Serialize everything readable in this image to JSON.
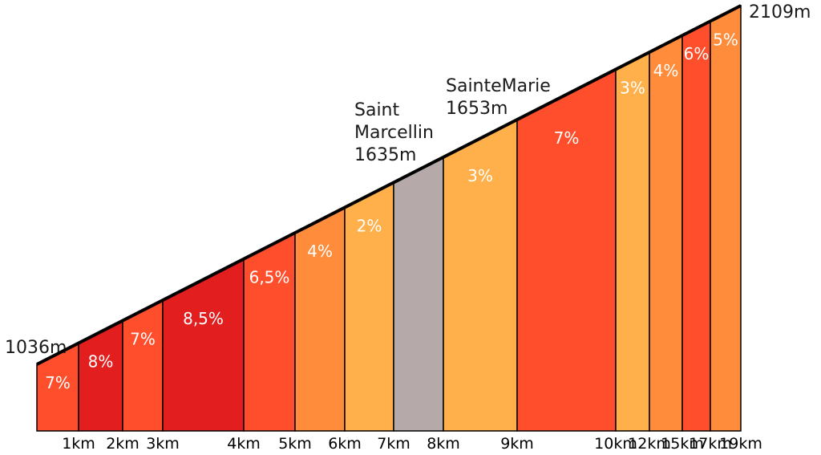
{
  "chart_data": {
    "type": "area",
    "title": "",
    "xlabel": "",
    "ylabel": "",
    "start_altitude_label": "1036m",
    "end_altitude_label": "2109m",
    "segments": [
      {
        "km_end": 1,
        "grade": "7%",
        "color": "#ff4e2b"
      },
      {
        "km_end": 2,
        "grade": "8%",
        "color": "#e21e1e"
      },
      {
        "km_end": 3,
        "grade": "7%",
        "color": "#ff4e2b"
      },
      {
        "km_end": 4,
        "grade": "8,5%",
        "color": "#e21e1e"
      },
      {
        "km_end": 5,
        "grade": "6,5%",
        "color": "#ff4e2b"
      },
      {
        "km_end": 6,
        "grade": "4%",
        "color": "#ff8c3a"
      },
      {
        "km_end": 7,
        "grade": "2%",
        "color": "#ffb04a"
      },
      {
        "km_end": 8,
        "grade": "",
        "color": "#b5a9a9"
      },
      {
        "km_end": 9,
        "grade": "3%",
        "color": "#ffb04a"
      },
      {
        "km_end": 10,
        "grade": "7%",
        "color": "#ff4e2b"
      },
      {
        "km_end": 12,
        "grade": "3%",
        "color": "#ffb04a"
      },
      {
        "km_end": 15,
        "grade": "4%",
        "color": "#ff8c3a"
      },
      {
        "km_end": 17,
        "grade": "6%",
        "color": "#ff4e2b"
      },
      {
        "km_end": 19,
        "grade": "5%",
        "color": "#ff8c3a"
      }
    ],
    "x_tick_labels": [
      "1km",
      "2km",
      "3km",
      "4km",
      "5km",
      "6km",
      "7km",
      "8km",
      "9km",
      "10km",
      "12km",
      "15km",
      "17km",
      "19km"
    ],
    "annotations": [
      {
        "lines": [
          "Saint",
          "Marcellin",
          "1635m"
        ]
      },
      {
        "lines": [
          "SainteMarie",
          "1653m"
        ]
      }
    ]
  }
}
